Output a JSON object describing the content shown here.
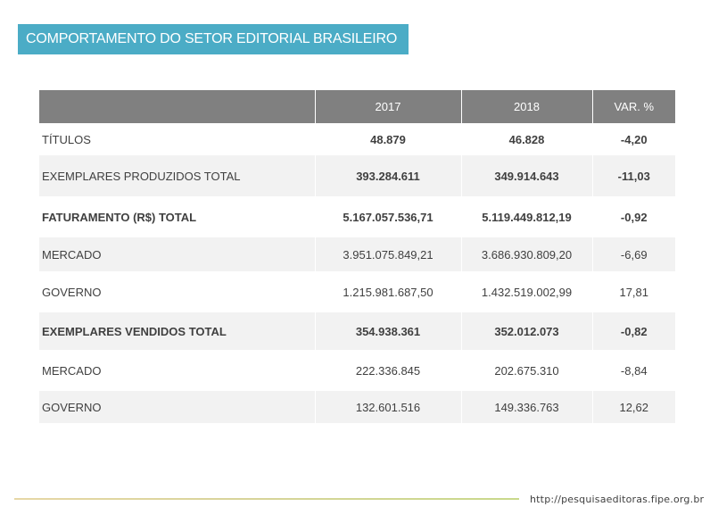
{
  "title": "COMPORTAMENTO DO SETOR EDITORIAL BRASILEIRO",
  "table": {
    "headers": [
      "",
      "2017",
      "2018",
      "VAR. %"
    ],
    "rows": [
      {
        "label": "TÍTULOS",
        "v2017": "48.879",
        "v2018": "46.828",
        "var": "-4,20"
      },
      {
        "label": "EXEMPLARES PRODUZIDOS  TOTAL",
        "v2017": "393.284.611",
        "v2018": "349.914.643",
        "var": "-11,03"
      },
      {
        "label": "FATURAMENTO (R$) TOTAL",
        "v2017": "5.167.057.536,71",
        "v2018": "5.119.449.812,19",
        "var": "-0,92"
      },
      {
        "label": "MERCADO",
        "v2017": "3.951.075.849,21",
        "v2018": "3.686.930.809,20",
        "var": "-6,69"
      },
      {
        "label": "GOVERNO",
        "v2017": "1.215.981.687,50",
        "v2018": "1.432.519.002,99",
        "var": "17,81"
      },
      {
        "label": "EXEMPLARES VENDIDOS TOTAL",
        "v2017": "354.938.361",
        "v2018": "352.012.073",
        "var": "-0,82"
      },
      {
        "label": "MERCADO",
        "v2017": "222.336.845",
        "v2018": "202.675.310",
        "var": "-8,84"
      },
      {
        "label": "GOVERNO",
        "v2017": "132.601.516",
        "v2018": "149.336.763",
        "var": "12,62"
      }
    ]
  },
  "footer": {
    "url": "http://pesquisaeditoras.fipe.org.br"
  },
  "colors": {
    "title_bg": "#4bacc6",
    "header_bg": "#808080",
    "row_alt_bg": "#f2f2f2"
  }
}
